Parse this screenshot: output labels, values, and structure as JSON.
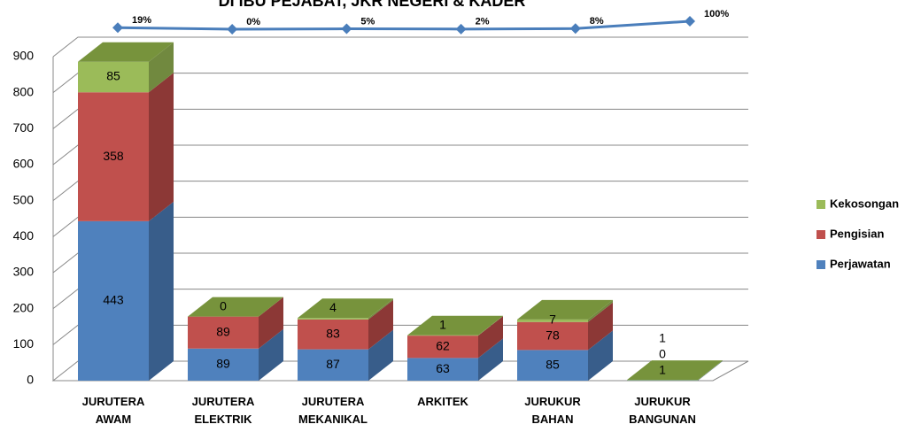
{
  "chart_data": {
    "type": "bar3d_stacked",
    "title": "DI IBU PEJABAT, JKR NEGERI & KADER",
    "categories": [
      "JURUTERA AWAM",
      "JURUTERA ELEKTRIK",
      "JURUTERA MEKANIKAL",
      "ARKITEK",
      "JURUKUR BAHAN",
      "JURUKUR BANGUNAN"
    ],
    "series": [
      {
        "name": "Perjawatan",
        "color": "#4f81bd",
        "side": "#385d8a",
        "values": [
          443,
          89,
          87,
          63,
          85,
          1
        ]
      },
      {
        "name": "Pengisian",
        "color": "#c0504d",
        "side": "#8c3836",
        "values": [
          358,
          89,
          83,
          62,
          78,
          0
        ]
      },
      {
        "name": "Kekosongan",
        "color": "#9bbb59",
        "side": "#71893f",
        "values": [
          85,
          0,
          4,
          1,
          7,
          1
        ]
      }
    ],
    "top_color": "#77933c",
    "line": {
      "color": "#4a7ebb",
      "axis": "y2",
      "values": [
        19,
        0,
        5,
        2,
        8,
        100
      ],
      "value_labels": [
        "19%",
        "0%",
        "5%",
        "2%",
        "8%",
        "100%"
      ]
    },
    "ylim": [
      0,
      900
    ],
    "yticks": [
      0,
      100,
      200,
      300,
      400,
      500,
      600,
      700,
      800,
      900
    ],
    "y2lim": [
      0,
      100
    ],
    "grid": true,
    "legend": "right"
  }
}
